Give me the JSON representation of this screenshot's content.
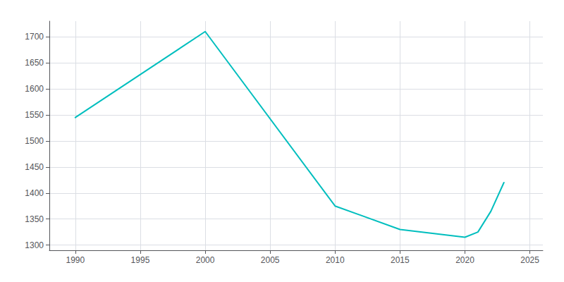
{
  "chart_data": {
    "type": "line",
    "x": [
      1990,
      2000,
      2010,
      2015,
      2020,
      2021,
      2022,
      2023
    ],
    "values": [
      1545,
      1710,
      1375,
      1330,
      1315,
      1325,
      1365,
      1420
    ],
    "color": "#00BEBE",
    "xlim": [
      1988,
      2026
    ],
    "ylim": [
      1290,
      1730
    ],
    "xticks": [
      1990,
      1995,
      2000,
      2005,
      2010,
      2015,
      2020,
      2025
    ],
    "yticks": [
      1300,
      1350,
      1400,
      1450,
      1500,
      1550,
      1600,
      1650,
      1700
    ],
    "grid": true
  }
}
